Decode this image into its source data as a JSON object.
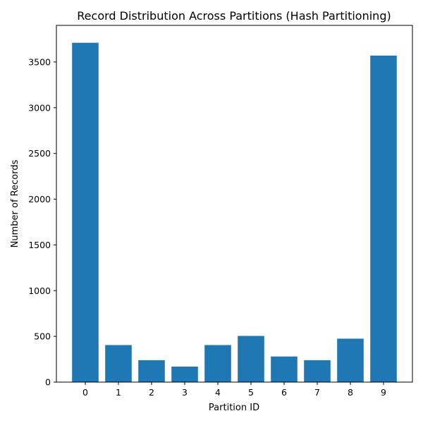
{
  "chart_data": {
    "type": "bar",
    "title": "Record Distribution Across Partitions (Hash Partitioning)",
    "xlabel": "Partition ID",
    "ylabel": "Number of Records",
    "categories": [
      "0",
      "1",
      "2",
      "3",
      "4",
      "5",
      "6",
      "7",
      "8",
      "9"
    ],
    "values": [
      3710,
      405,
      240,
      170,
      405,
      505,
      280,
      240,
      475,
      3570
    ],
    "ylim": [
      0,
      3900
    ],
    "yticks": [
      0,
      500,
      1000,
      1500,
      2000,
      2500,
      3000,
      3500
    ],
    "bar_color": "#1f77b4",
    "grid": false,
    "legend": "none"
  }
}
